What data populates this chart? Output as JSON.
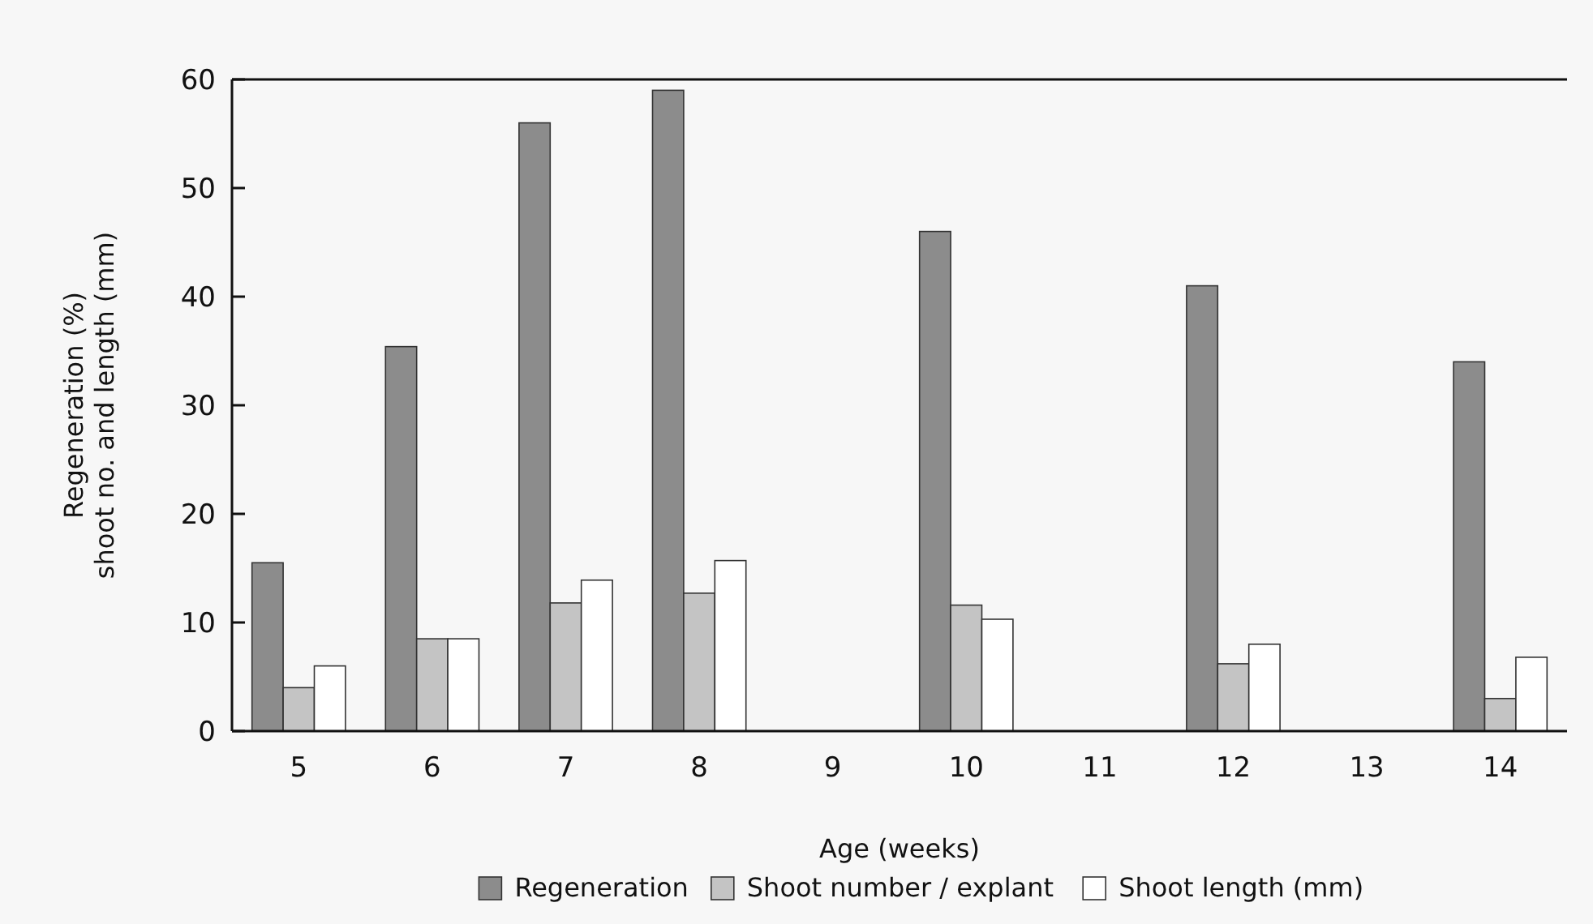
{
  "chart_data": {
    "type": "bar",
    "xlabel": "Age (weeks)",
    "ylabel": "Regeneration (%)\nshoot no. and length (mm)",
    "categories": [
      "5",
      "6",
      "7",
      "8",
      "9",
      "10",
      "11",
      "12",
      "13",
      "14"
    ],
    "series": [
      {
        "name": "Regeneration",
        "color": "#8c8c8c",
        "values": [
          15.5,
          35.4,
          56,
          59,
          null,
          46,
          null,
          41,
          null,
          34
        ]
      },
      {
        "name": "Shoot number / explant",
        "color": "#c4c4c4",
        "values": [
          4,
          8.5,
          11.8,
          12.7,
          null,
          11.6,
          null,
          6.2,
          null,
          3
        ]
      },
      {
        "name": "Shoot length (mm)",
        "color": "#ffffff",
        "values": [
          6,
          8.5,
          13.9,
          15.7,
          null,
          10.3,
          null,
          8,
          null,
          6.8
        ]
      }
    ],
    "ylim": [
      0,
      60
    ],
    "yticks": [
      0,
      10,
      20,
      30,
      40,
      50,
      60
    ],
    "grid": false,
    "legend": "bottom"
  }
}
